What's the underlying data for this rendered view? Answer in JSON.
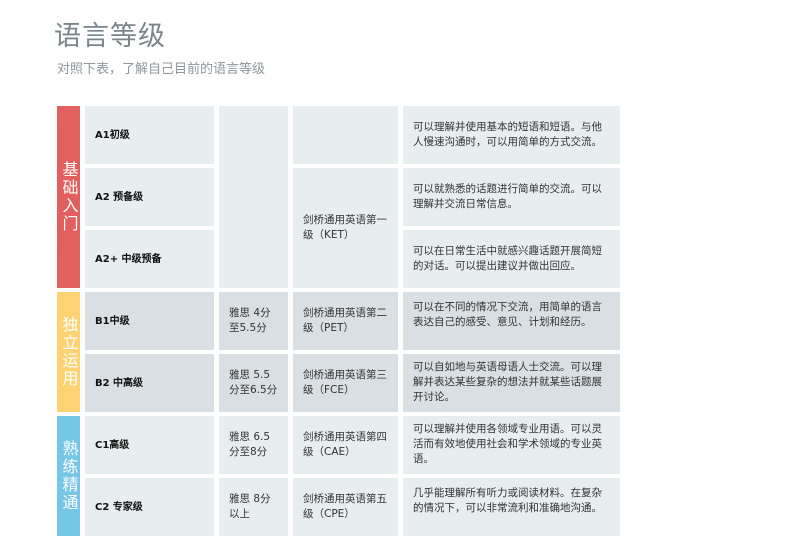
{
  "title": "语言等级",
  "subtitle": "对照下表，了解自己目前的语言等级",
  "colors": {
    "basic": "#e05757",
    "independent": "#fdd06b",
    "proficient": "#6fc3e5"
  },
  "bands": [
    {
      "label": "基础入门"
    },
    {
      "label": "独立运用"
    },
    {
      "label": "熟练精通"
    }
  ],
  "rows": [
    {
      "level": "A1初级",
      "ielts": "",
      "cambridge": "",
      "desc": "可以理解并使用基本的短语和短语。与他人慢速沟通时，可以用简单的方式交流。"
    },
    {
      "level": "A2 预备级",
      "ielts": "",
      "cambridge": "剑桥通用英语第一级（KET）",
      "desc": "可以就熟悉的话题进行简单的交流。可以理解并交流日常信息。"
    },
    {
      "level": "A2+ 中级预备",
      "desc": "可以在日常生活中就感兴趣话题开展简短的对话。可以提出建议并做出回应。"
    },
    {
      "level": "B1中级",
      "ielts": "雅思  4分至5.5分",
      "cambridge": "剑桥通用英语第二级（PET）",
      "desc": "可以在不同的情况下交流，用简单的语言表达自己的感受、意见、计划和经历。"
    },
    {
      "level": "B2 中高级",
      "ielts": "雅思  5.5分至6.5分",
      "cambridge": "剑桥通用英语第三级（FCE）",
      "desc": "可以自如地与英语母语人士交流。可以理解并表达某些复杂的想法并就某些话题展开讨论。"
    },
    {
      "level": "C1高级",
      "ielts": "雅思  6.5 分至8分",
      "cambridge": "剑桥通用英语第四级（CAE）",
      "desc": "可以理解并使用各领域专业用语。可以灵活而有效地使用社会和学术领域的专业英语。"
    },
    {
      "level": "C2 专家级",
      "ielts": "雅思  8分以上",
      "cambridge": "剑桥通用英语第五级（CPE）",
      "desc": "几乎能理解所有听力或阅读材料。在复杂的情况下，可以非常流利和准确地沟通。"
    }
  ]
}
